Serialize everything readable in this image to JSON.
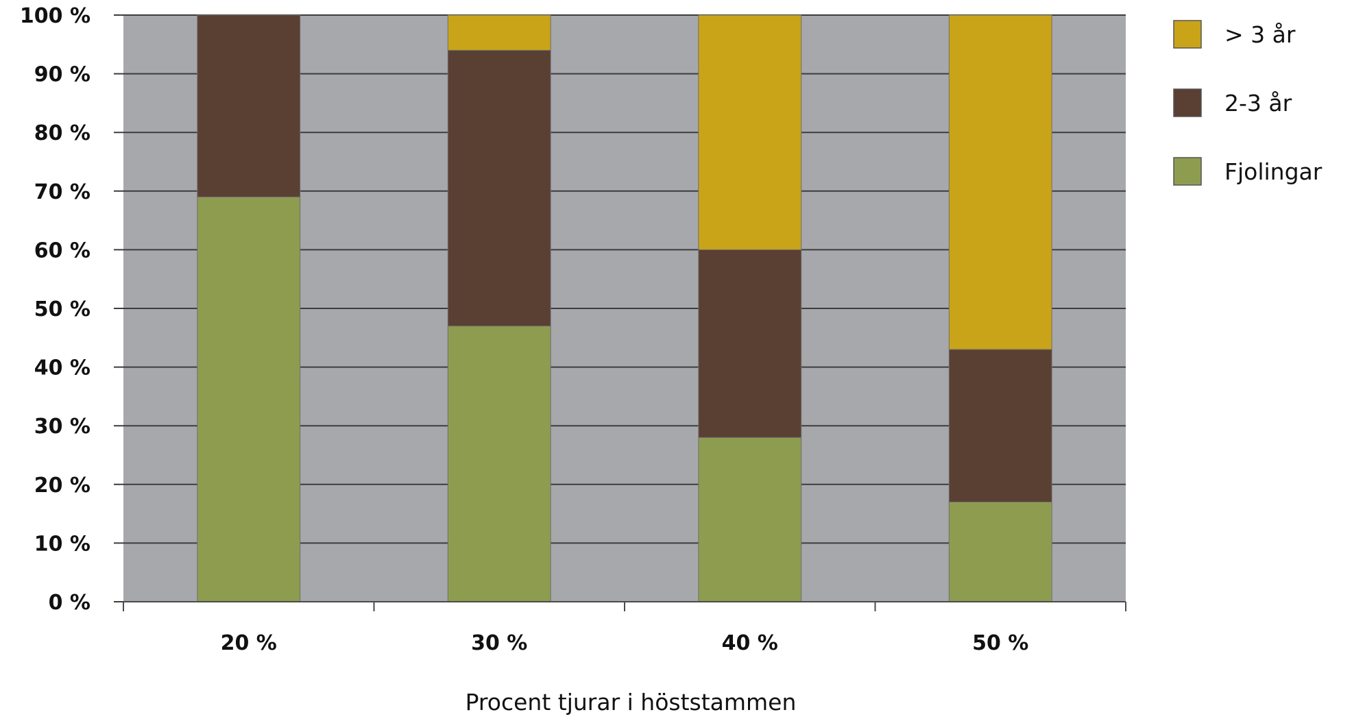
{
  "chart_data": {
    "type": "bar",
    "stacked": true,
    "title": "",
    "xlabel": "Procent tjurar i höststammen",
    "ylabel": "",
    "categories": [
      "20 %",
      "30 %",
      "40 %",
      "50 %"
    ],
    "ylim": [
      0,
      100
    ],
    "yticks": [
      0,
      10,
      20,
      30,
      40,
      50,
      60,
      70,
      80,
      90,
      100
    ],
    "ytick_labels": [
      "0 %",
      "10 %",
      "20 %",
      "30 %",
      "40 %",
      "50 %",
      "60 %",
      "70 %",
      "80 %",
      "90 %",
      "100 %"
    ],
    "grid": true,
    "legend_position": "right",
    "series": [
      {
        "name": "Fjolingar",
        "color": "#8e9c50",
        "values": [
          69,
          47,
          28,
          17
        ]
      },
      {
        "name": "2-3 år",
        "color": "#5a3f33",
        "values": [
          31,
          47,
          32,
          26
        ]
      },
      {
        "name": "> 3 år",
        "color": "#c9a418",
        "values": [
          0,
          6,
          40,
          57
        ]
      }
    ],
    "legend_order": [
      "> 3 år",
      "2-3 år",
      "Fjolingar"
    ],
    "plot_background": "#a7a8ac",
    "gridline_color": "#3c3c3c"
  }
}
